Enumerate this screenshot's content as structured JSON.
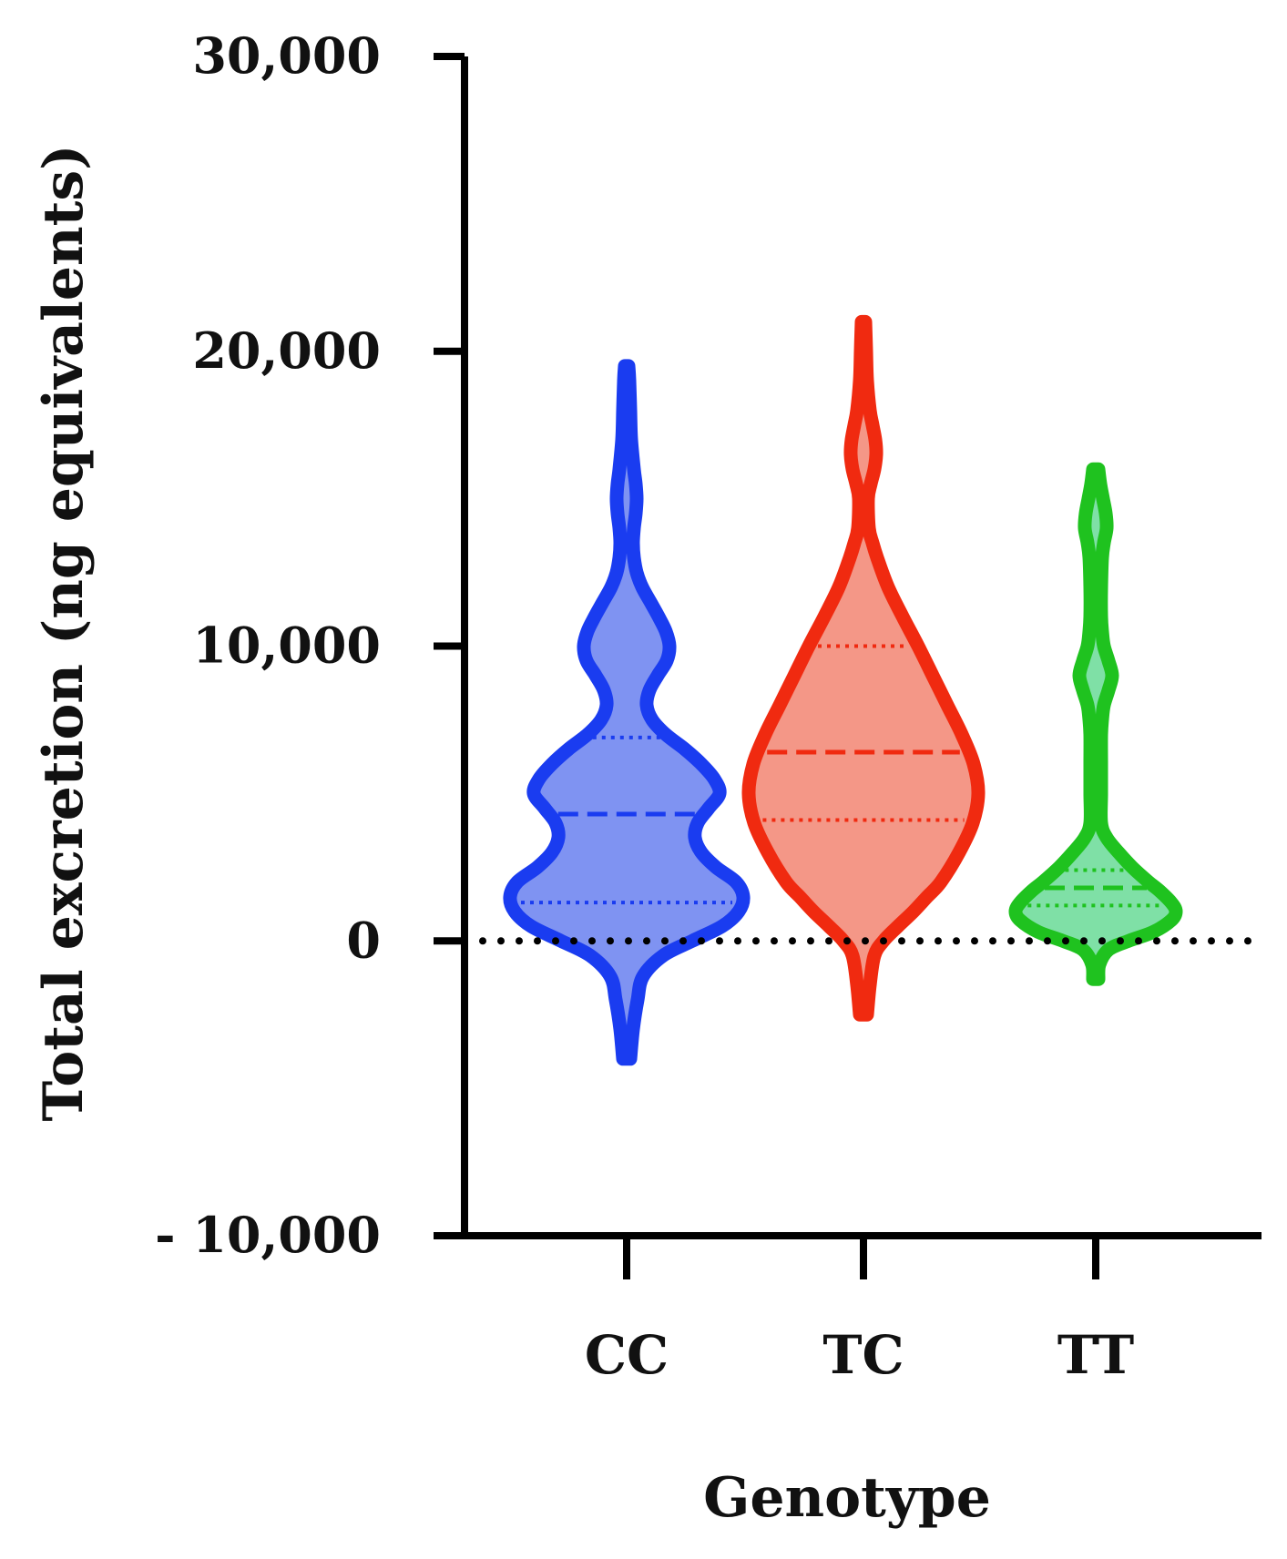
{
  "chart_data": {
    "type": "violin",
    "xlabel": "Genotype",
    "ylabel": "Total excretion (ng equivalents)",
    "ylim": [
      -10000,
      30000
    ],
    "yticks": [
      -10000,
      0,
      10000,
      20000,
      30000
    ],
    "ytick_labels": [
      "- 10,000",
      "0",
      "10,000",
      "20,000",
      "30,000"
    ],
    "reference_line": 0,
    "categories": [
      "CC",
      "TC",
      "TT"
    ],
    "series": [
      {
        "category": "CC",
        "color": "#1a3cf0",
        "fill": "#7f93f2",
        "median": 4300,
        "q1": 1300,
        "q3": 6900,
        "profile": [
          [
            -4000,
            4
          ],
          [
            -3000,
            7
          ],
          [
            -2000,
            12
          ],
          [
            -1200,
            18
          ],
          [
            -500,
            40
          ],
          [
            0,
            72
          ],
          [
            500,
            105
          ],
          [
            1000,
            123
          ],
          [
            1500,
            128
          ],
          [
            2000,
            120
          ],
          [
            2500,
            98
          ],
          [
            3000,
            82
          ],
          [
            3500,
            75
          ],
          [
            4000,
            78
          ],
          [
            4500,
            90
          ],
          [
            5000,
            102
          ],
          [
            5500,
            96
          ],
          [
            6000,
            82
          ],
          [
            6500,
            64
          ],
          [
            7000,
            43
          ],
          [
            7500,
            28
          ],
          [
            8000,
            22
          ],
          [
            8500,
            25
          ],
          [
            9000,
            34
          ],
          [
            9500,
            44
          ],
          [
            10000,
            47
          ],
          [
            10500,
            43
          ],
          [
            11000,
            35
          ],
          [
            11500,
            26
          ],
          [
            12000,
            17
          ],
          [
            12500,
            11
          ],
          [
            13000,
            8
          ],
          [
            13500,
            7
          ],
          [
            14000,
            8
          ],
          [
            14500,
            10
          ],
          [
            15000,
            11
          ],
          [
            15500,
            10
          ],
          [
            16000,
            8
          ],
          [
            17000,
            5
          ],
          [
            18000,
            4
          ],
          [
            19000,
            3
          ],
          [
            19500,
            2
          ]
        ]
      },
      {
        "category": "TC",
        "color": "#f02a10",
        "fill": "#f49787",
        "median": 6400,
        "q1": 4100,
        "q3": 10000,
        "profile": [
          [
            -2500,
            4
          ],
          [
            -1500,
            7
          ],
          [
            -500,
            12
          ],
          [
            0,
            22
          ],
          [
            500,
            38
          ],
          [
            1000,
            55
          ],
          [
            1500,
            70
          ],
          [
            2000,
            85
          ],
          [
            3000,
            105
          ],
          [
            4000,
            120
          ],
          [
            5000,
            126
          ],
          [
            6000,
            121
          ],
          [
            7000,
            108
          ],
          [
            8000,
            92
          ],
          [
            9000,
            76
          ],
          [
            10000,
            60
          ],
          [
            11000,
            43
          ],
          [
            12000,
            27
          ],
          [
            13000,
            15
          ],
          [
            13500,
            10
          ],
          [
            14000,
            6
          ],
          [
            15000,
            5
          ],
          [
            15500,
            8
          ],
          [
            16000,
            12
          ],
          [
            16500,
            14
          ],
          [
            17000,
            13
          ],
          [
            17500,
            10
          ],
          [
            18000,
            7
          ],
          [
            19000,
            4
          ],
          [
            20000,
            3
          ],
          [
            21000,
            2
          ]
        ]
      },
      {
        "category": "TT",
        "color": "#1fc21f",
        "fill": "#7fe0a6",
        "median": 1800,
        "q1": 1200,
        "q3": 2400,
        "profile": [
          [
            -1300,
            3
          ],
          [
            -800,
            4
          ],
          [
            -300,
            14
          ],
          [
            0,
            36
          ],
          [
            300,
            63
          ],
          [
            700,
            83
          ],
          [
            1000,
            88
          ],
          [
            1300,
            83
          ],
          [
            1700,
            70
          ],
          [
            2000,
            58
          ],
          [
            2500,
            40
          ],
          [
            3000,
            25
          ],
          [
            3500,
            12
          ],
          [
            4000,
            6
          ],
          [
            5000,
            6
          ],
          [
            6000,
            6
          ],
          [
            7000,
            6
          ],
          [
            7500,
            7
          ],
          [
            8000,
            9
          ],
          [
            8500,
            14
          ],
          [
            9000,
            18
          ],
          [
            9500,
            14
          ],
          [
            10000,
            9
          ],
          [
            10500,
            7
          ],
          [
            11000,
            6
          ],
          [
            12000,
            6
          ],
          [
            13000,
            7
          ],
          [
            13500,
            9
          ],
          [
            14000,
            12
          ],
          [
            14500,
            11
          ],
          [
            15000,
            8
          ],
          [
            15500,
            5
          ],
          [
            16000,
            3
          ]
        ]
      }
    ]
  }
}
